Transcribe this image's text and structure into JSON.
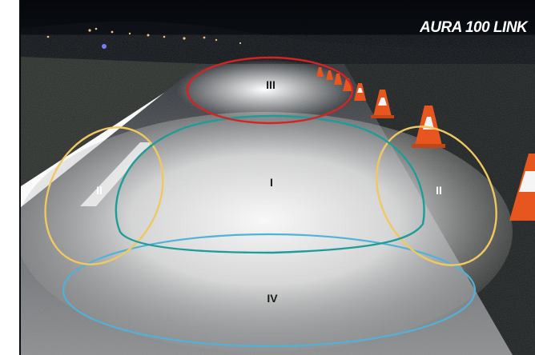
{
  "image": {
    "title": "AURA 100 LINK",
    "zones": [
      {
        "id": "I",
        "label": "I",
        "color": "#1e9d98"
      },
      {
        "id": "II-left",
        "label": "II",
        "color": "#f0c860"
      },
      {
        "id": "II-right",
        "label": "II",
        "color": "#f0c860"
      },
      {
        "id": "III",
        "label": "III",
        "color": "#d42424"
      },
      {
        "id": "IV",
        "label": "IV",
        "color": "#4fb3d9"
      }
    ],
    "colors": {
      "sky": "#0a0d12",
      "road": "#6e6e6e",
      "lit_area": "#f2f2f2",
      "cone_orange": "#e8561f",
      "cone_white": "#f5f5f5"
    }
  }
}
